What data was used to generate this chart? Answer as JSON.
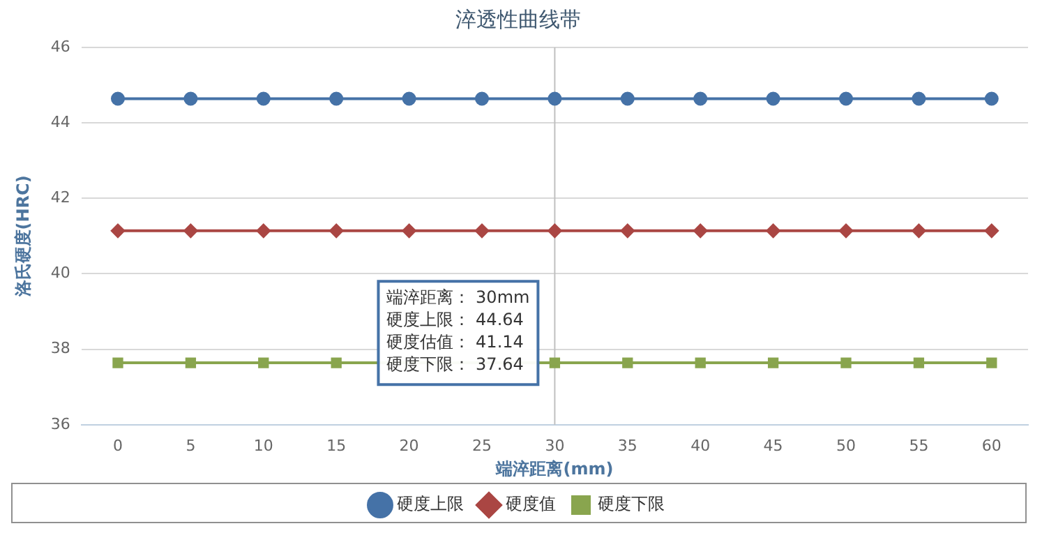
{
  "chart_data": {
    "type": "line",
    "title": "淬透性曲线带",
    "xlabel": "端淬距离(mm)",
    "ylabel": "洛氏硬度(HRC)",
    "categories": [
      "0",
      "5",
      "10",
      "15",
      "20",
      "25",
      "30",
      "35",
      "40",
      "45",
      "50",
      "55",
      "60"
    ],
    "series": [
      {
        "name": "硬度上限",
        "color": "#4572a7",
        "marker": "circle",
        "values": [
          44.64,
          44.64,
          44.64,
          44.64,
          44.64,
          44.64,
          44.64,
          44.64,
          44.64,
          44.64,
          44.64,
          44.64,
          44.64
        ]
      },
      {
        "name": "硬度值",
        "color": "#aa4643",
        "marker": "diamond",
        "values": [
          41.14,
          41.14,
          41.14,
          41.14,
          41.14,
          41.14,
          41.14,
          41.14,
          41.14,
          41.14,
          41.14,
          41.14,
          41.14
        ]
      },
      {
        "name": "硬度下限",
        "color": "#89a54e",
        "marker": "square",
        "values": [
          37.64,
          37.64,
          37.64,
          37.64,
          null,
          null,
          37.64,
          37.64,
          37.64,
          37.64,
          37.64,
          37.64,
          37.64
        ]
      }
    ],
    "ylim": [
      36,
      46
    ],
    "yticks": [
      36,
      38,
      40,
      42,
      44,
      46
    ],
    "grid": "y",
    "legend": "bottom",
    "ref_lines": [
      {
        "axis": "x",
        "value": "30",
        "color": "#c0c0c0"
      }
    ],
    "annotations": [
      "端淬距离： 30mm",
      "硬度上限： 44.64",
      "硬度估值： 41.14",
      "硬度下限： 37.64"
    ]
  }
}
